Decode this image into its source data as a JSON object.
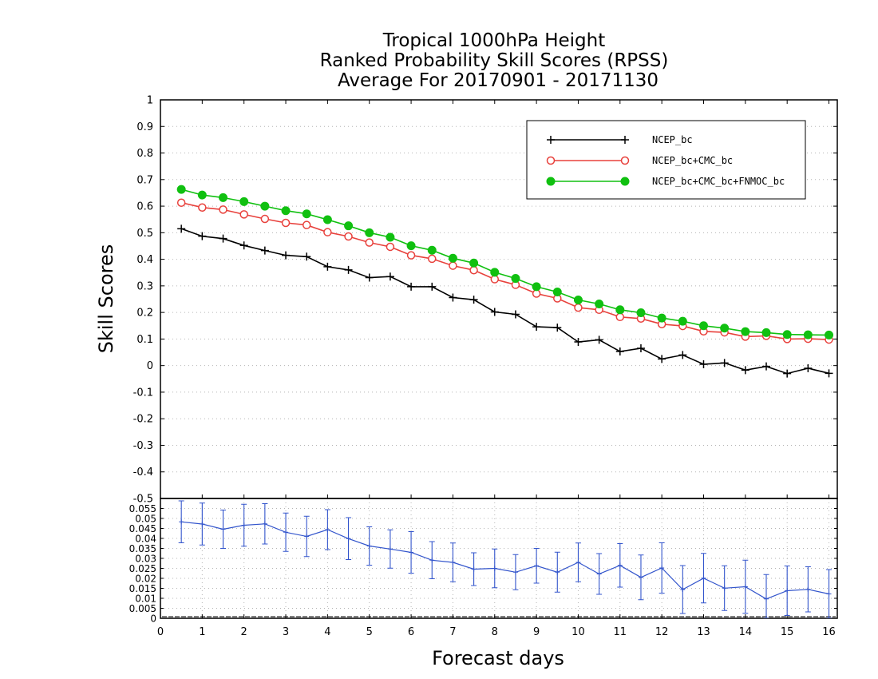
{
  "title_lines": [
    "Tropical 1000hPa Height",
    "Ranked Probability Skill Scores (RPSS)",
    "Average For 20170901 - 20171130"
  ],
  "colors": {
    "ncep": "#000000",
    "ncep_cmc": "#e8413c",
    "ncep_cmc_fnmoc": "#10c010",
    "spread": "#3355cc"
  },
  "chart_data": [
    {
      "type": "line",
      "xlabel": "Forecast days",
      "ylabel": "Skill Scores",
      "xlim": [
        0,
        16.2
      ],
      "ylim": [
        -0.5,
        1
      ],
      "yticks": [
        "1",
        "0.9",
        "0.8",
        "0.7",
        "0.6",
        "0.5",
        "0.4",
        "0.3",
        "0.2",
        "0.1",
        "0",
        "-0.1",
        "-0.2",
        "-0.3",
        "-0.4",
        "-0.5"
      ],
      "xticks": [
        "0",
        "1",
        "2",
        "3",
        "4",
        "5",
        "6",
        "7",
        "8",
        "9",
        "10",
        "11",
        "12",
        "13",
        "14",
        "15",
        "16"
      ],
      "grid": true,
      "legend_position": "top-right",
      "x": [
        0.5,
        1.0,
        1.5,
        2.0,
        2.5,
        3.0,
        3.5,
        4.0,
        4.5,
        5.0,
        5.5,
        6.0,
        6.5,
        7.0,
        7.5,
        8.0,
        8.5,
        9.0,
        9.5,
        10.0,
        10.5,
        11.0,
        11.5,
        12.0,
        12.5,
        13.0,
        13.5,
        14.0,
        14.5,
        15.0,
        15.5,
        16.0
      ],
      "series": [
        {
          "name": "NCEP_bc",
          "marker": "plus",
          "values": [
            0.515,
            0.487,
            0.478,
            0.452,
            0.433,
            0.415,
            0.41,
            0.372,
            0.36,
            0.331,
            0.335,
            0.297,
            0.297,
            0.256,
            0.248,
            0.202,
            0.193,
            0.146,
            0.143,
            0.089,
            0.097,
            0.053,
            0.065,
            0.025,
            0.04,
            0.005,
            0.01,
            -0.017,
            -0.003,
            -0.03,
            -0.01,
            -0.029
          ]
        },
        {
          "name": "NCEP_bc+CMC_bc",
          "marker": "open-circle",
          "values": [
            0.613,
            0.595,
            0.587,
            0.569,
            0.552,
            0.537,
            0.529,
            0.502,
            0.486,
            0.463,
            0.447,
            0.415,
            0.402,
            0.376,
            0.359,
            0.325,
            0.304,
            0.271,
            0.253,
            0.218,
            0.21,
            0.183,
            0.177,
            0.156,
            0.149,
            0.129,
            0.125,
            0.109,
            0.112,
            0.1,
            0.101,
            0.098
          ]
        },
        {
          "name": "NCEP_bc+CMC_bc+FNMOC_bc",
          "marker": "filled-circle",
          "values": [
            0.663,
            0.642,
            0.632,
            0.617,
            0.6,
            0.583,
            0.571,
            0.549,
            0.526,
            0.5,
            0.483,
            0.451,
            0.434,
            0.404,
            0.386,
            0.351,
            0.328,
            0.297,
            0.277,
            0.247,
            0.232,
            0.21,
            0.199,
            0.179,
            0.167,
            0.15,
            0.141,
            0.128,
            0.124,
            0.117,
            0.116,
            0.115
          ]
        }
      ]
    },
    {
      "type": "line",
      "ylim": [
        0,
        0.06
      ],
      "yticks": [
        "0.055",
        "0.05",
        "0.045",
        "0.04",
        "0.035",
        "0.03",
        "0.025",
        "0.02",
        "0.015",
        "0.01",
        "0.005",
        "0"
      ],
      "xticks": [
        "0",
        "1",
        "2",
        "3",
        "4",
        "5",
        "6",
        "7",
        "8",
        "9",
        "10",
        "11",
        "12",
        "13",
        "14",
        "15",
        "16"
      ],
      "x": [
        0.5,
        1.0,
        1.5,
        2.0,
        2.5,
        3.0,
        3.5,
        4.0,
        4.5,
        5.0,
        5.5,
        6.0,
        6.5,
        7.0,
        7.5,
        8.0,
        8.5,
        9.0,
        9.5,
        10.0,
        10.5,
        11.0,
        11.5,
        12.0,
        12.5,
        13.0,
        13.5,
        14.0,
        14.5,
        15.0,
        15.5,
        16.0
      ],
      "series": [
        {
          "marker": "plus",
          "values": [
            0.0483,
            0.0472,
            0.0446,
            0.0466,
            0.0473,
            0.0431,
            0.041,
            0.0444,
            0.0399,
            0.0362,
            0.0347,
            0.033,
            0.0291,
            0.028,
            0.0246,
            0.025,
            0.0231,
            0.0263,
            0.0231,
            0.028,
            0.0222,
            0.0265,
            0.0205,
            0.0252,
            0.0144,
            0.0201,
            0.0151,
            0.0158,
            0.0097,
            0.0138,
            0.0145,
            0.0122
          ],
          "error": [
            0.0105,
            0.0105,
            0.0096,
            0.0105,
            0.0101,
            0.0096,
            0.0101,
            0.01,
            0.0105,
            0.0096,
            0.0096,
            0.0104,
            0.0093,
            0.0097,
            0.0082,
            0.0097,
            0.0088,
            0.0087,
            0.01,
            0.0097,
            0.0102,
            0.0109,
            0.0112,
            0.0126,
            0.012,
            0.0124,
            0.0112,
            0.0133,
            0.0122,
            0.0124,
            0.0113,
            0.0122
          ]
        }
      ]
    }
  ]
}
